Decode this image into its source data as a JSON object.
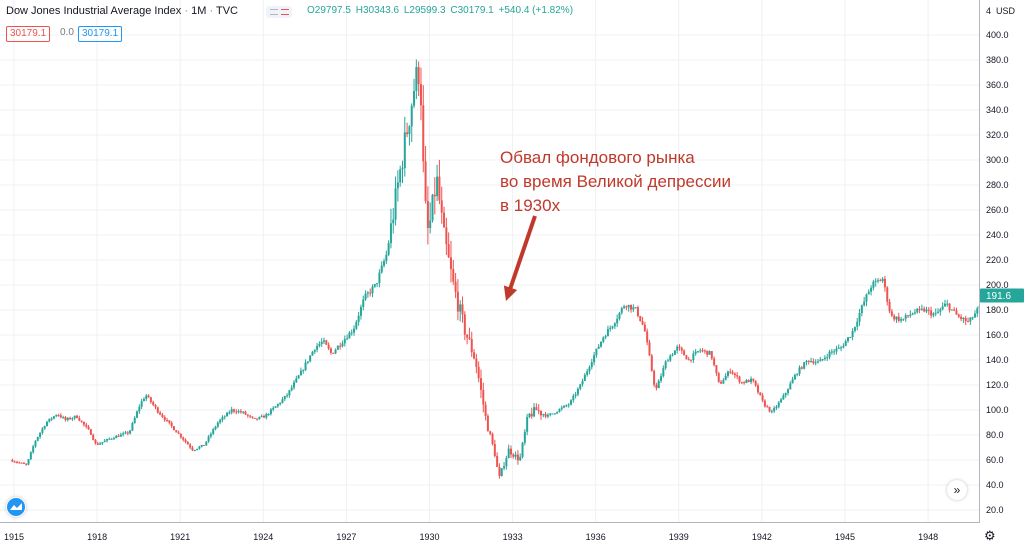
{
  "header": {
    "title": "Dow Jones Industrial Average Index",
    "interval": "1M",
    "source": "TVC",
    "ohlc": {
      "open": "O29797.5",
      "high": "H30343.6",
      "low": "L29599.3",
      "close": "C30179.1",
      "change": "+540.4 (+1.82%)"
    },
    "bid": "30179.1",
    "spread": "0.0",
    "ask": "30179.1"
  },
  "price_axis": {
    "currency": "USD",
    "current_label": "191.6",
    "top_label": "4"
  },
  "annotation": {
    "lines": [
      "Обвал фондового рынка",
      "во время Великой депрессии",
      "в 1930х"
    ],
    "color": "#c0392b"
  },
  "colors": {
    "up": "#26a69a",
    "down": "#ef5350",
    "grid": "#eef0f3",
    "axis_text": "#131722",
    "current_price_bg": "#26a69a"
  },
  "icons": {
    "scroll": "double-chevron-right-icon",
    "logo": "tradingview-logo-icon",
    "settings": "gear-icon"
  },
  "chart_data": {
    "type": "candlestick",
    "title": "Dow Jones Industrial Average Index",
    "x_ticks": [
      "1915",
      "1918",
      "1921",
      "1924",
      "1927",
      "1930",
      "1933",
      "1936",
      "1939",
      "1942",
      "1945",
      "1948"
    ],
    "x_range": [
      1915,
      1950.3
    ],
    "y_ticks": [
      20,
      40,
      60,
      80,
      100,
      120,
      140,
      160,
      180,
      200,
      220,
      240,
      260,
      280,
      300,
      320,
      340,
      360,
      380,
      400
    ],
    "y_range": [
      10,
      420
    ],
    "grid": true,
    "current_price": 191.6,
    "approx_path": [
      [
        1914.9,
        60
      ],
      [
        1915.5,
        56
      ],
      [
        1915.8,
        75
      ],
      [
        1916.2,
        90
      ],
      [
        1916.6,
        97
      ],
      [
        1916.9,
        92
      ],
      [
        1917.3,
        95
      ],
      [
        1917.8,
        82
      ],
      [
        1918.0,
        72
      ],
      [
        1918.6,
        78
      ],
      [
        1919.2,
        82
      ],
      [
        1919.6,
        105
      ],
      [
        1919.8,
        112
      ],
      [
        1920.2,
        100
      ],
      [
        1920.6,
        90
      ],
      [
        1921.1,
        78
      ],
      [
        1921.5,
        68
      ],
      [
        1921.9,
        72
      ],
      [
        1922.4,
        90
      ],
      [
        1922.9,
        100
      ],
      [
        1923.3,
        98
      ],
      [
        1923.7,
        92
      ],
      [
        1924.1,
        95
      ],
      [
        1924.5,
        103
      ],
      [
        1924.9,
        112
      ],
      [
        1925.4,
        130
      ],
      [
        1925.9,
        150
      ],
      [
        1926.2,
        155
      ],
      [
        1926.5,
        145
      ],
      [
        1926.9,
        155
      ],
      [
        1927.3,
        165
      ],
      [
        1927.7,
        190
      ],
      [
        1928.1,
        200
      ],
      [
        1928.5,
        225
      ],
      [
        1928.9,
        280
      ],
      [
        1929.2,
        320
      ],
      [
        1929.5,
        360
      ],
      [
        1929.7,
        375
      ],
      [
        1929.85,
        270
      ],
      [
        1930.0,
        240
      ],
      [
        1930.3,
        285
      ],
      [
        1930.55,
        240
      ],
      [
        1930.9,
        200
      ],
      [
        1931.3,
        165
      ],
      [
        1931.7,
        140
      ],
      [
        1932.1,
        90
      ],
      [
        1932.4,
        65
      ],
      [
        1932.55,
        45
      ],
      [
        1932.9,
        68
      ],
      [
        1933.3,
        60
      ],
      [
        1933.6,
        95
      ],
      [
        1933.9,
        100
      ],
      [
        1934.3,
        95
      ],
      [
        1934.7,
        100
      ],
      [
        1935.1,
        105
      ],
      [
        1935.5,
        120
      ],
      [
        1935.9,
        140
      ],
      [
        1936.3,
        158
      ],
      [
        1936.7,
        170
      ],
      [
        1937.1,
        185
      ],
      [
        1937.5,
        180
      ],
      [
        1937.8,
        165
      ],
      [
        1938.2,
        115
      ],
      [
        1938.6,
        140
      ],
      [
        1939.0,
        150
      ],
      [
        1939.4,
        140
      ],
      [
        1939.8,
        148
      ],
      [
        1940.2,
        145
      ],
      [
        1940.5,
        120
      ],
      [
        1940.9,
        132
      ],
      [
        1941.3,
        122
      ],
      [
        1941.7,
        124
      ],
      [
        1942.1,
        105
      ],
      [
        1942.4,
        98
      ],
      [
        1942.8,
        110
      ],
      [
        1943.3,
        130
      ],
      [
        1943.7,
        140
      ],
      [
        1944.1,
        138
      ],
      [
        1944.5,
        146
      ],
      [
        1944.9,
        150
      ],
      [
        1945.3,
        162
      ],
      [
        1945.7,
        185
      ],
      [
        1946.0,
        200
      ],
      [
        1946.4,
        205
      ],
      [
        1946.7,
        175
      ],
      [
        1947.1,
        172
      ],
      [
        1947.5,
        178
      ],
      [
        1947.9,
        180
      ],
      [
        1948.3,
        176
      ],
      [
        1948.7,
        185
      ],
      [
        1949.1,
        175
      ],
      [
        1949.5,
        170
      ],
      [
        1949.9,
        182
      ],
      [
        1950.3,
        191.6
      ]
    ]
  }
}
